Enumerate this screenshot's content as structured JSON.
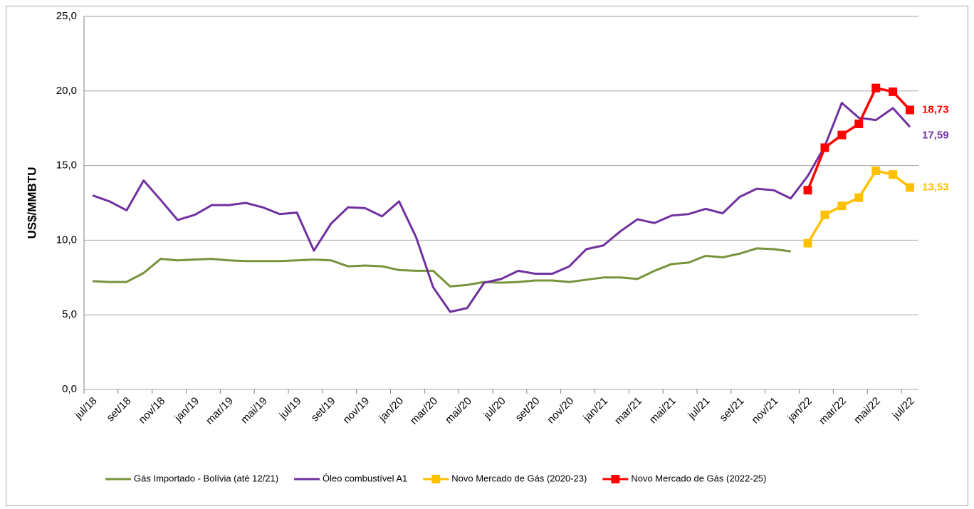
{
  "chart_data": {
    "type": "line",
    "y_label": "US$/MMBTU",
    "categories": [
      "jul/18",
      null,
      "set/18",
      null,
      "nov/18",
      null,
      "jan/19",
      null,
      "mar/19",
      null,
      "mai/19",
      null,
      "jul/19",
      null,
      "set/19",
      null,
      "nov/19",
      null,
      "jan/20",
      null,
      "mar/20",
      null,
      "mai/20",
      null,
      "jul/20",
      null,
      "set/20",
      null,
      "nov/20",
      null,
      "jan/21",
      null,
      "mar/21",
      null,
      "mai/21",
      null,
      "jul/21",
      null,
      "set/21",
      null,
      "nov/21",
      null,
      "jan/22",
      null,
      "mar/22",
      null,
      "mai/22",
      null,
      "jul/22"
    ],
    "ylim": [
      0,
      25
    ],
    "yticks": [
      {
        "value": 0,
        "label": "0,0"
      },
      {
        "value": 5,
        "label": "5,0"
      },
      {
        "value": 10,
        "label": "10,0"
      },
      {
        "value": 15,
        "label": "15,0"
      },
      {
        "value": 20,
        "label": "20,0"
      },
      {
        "value": 25,
        "label": "25,0"
      }
    ],
    "grid": true,
    "legend": "bottom",
    "series": [
      {
        "name": "Gás Importado - Bolívia (até 12/21)",
        "color": "#77933c",
        "marker": false,
        "values": [
          7.25,
          7.2,
          7.2,
          7.8,
          8.75,
          8.65,
          8.7,
          8.75,
          8.65,
          8.6,
          8.6,
          8.6,
          8.65,
          8.7,
          8.65,
          8.25,
          8.3,
          8.25,
          8.0,
          7.95,
          7.95,
          6.9,
          7.0,
          7.2,
          7.15,
          7.2,
          7.3,
          7.3,
          7.2,
          7.35,
          7.5,
          7.5,
          7.4,
          7.95,
          8.4,
          8.5,
          8.95,
          8.85,
          9.1,
          9.45,
          9.4,
          9.25,
          null,
          null,
          null,
          null,
          null,
          null,
          null
        ]
      },
      {
        "name": "Óleo combustível A1",
        "color": "#7030a0",
        "marker": false,
        "values": [
          13.0,
          12.6,
          12.0,
          14.0,
          12.7,
          11.35,
          11.7,
          12.35,
          12.35,
          12.5,
          12.2,
          11.75,
          11.85,
          9.3,
          11.1,
          12.2,
          12.15,
          11.6,
          12.6,
          10.2,
          6.85,
          5.2,
          5.45,
          7.15,
          7.4,
          7.95,
          7.75,
          7.75,
          8.25,
          9.4,
          9.65,
          10.6,
          11.4,
          11.15,
          11.65,
          11.75,
          12.1,
          11.8,
          12.9,
          13.45,
          13.35,
          12.8,
          14.3,
          16.3,
          19.2,
          18.2,
          18.05,
          18.85,
          17.59
        ],
        "value_labels": [
          null,
          null,
          null,
          null,
          null,
          null,
          null,
          null,
          null,
          null,
          null,
          null,
          null,
          null,
          null,
          null,
          null,
          null,
          null,
          null,
          null,
          null,
          null,
          null,
          null,
          null,
          null,
          null,
          null,
          null,
          null,
          null,
          null,
          null,
          null,
          null,
          null,
          null,
          null,
          null,
          null,
          null,
          null,
          null,
          null,
          null,
          null,
          null,
          "17,59"
        ]
      },
      {
        "name": "Novo Mercado de Gás (2020-23)",
        "color": "#ffc000",
        "marker": true,
        "values": [
          null,
          null,
          null,
          null,
          null,
          null,
          null,
          null,
          null,
          null,
          null,
          null,
          null,
          null,
          null,
          null,
          null,
          null,
          null,
          null,
          null,
          null,
          null,
          null,
          null,
          null,
          null,
          null,
          null,
          null,
          null,
          null,
          null,
          null,
          null,
          null,
          null,
          null,
          null,
          null,
          null,
          null,
          9.8,
          11.7,
          12.3,
          12.85,
          14.65,
          14.4,
          13.53
        ],
        "value_labels": [
          null,
          null,
          null,
          null,
          null,
          null,
          null,
          null,
          null,
          null,
          null,
          null,
          null,
          null,
          null,
          null,
          null,
          null,
          null,
          null,
          null,
          null,
          null,
          null,
          null,
          null,
          null,
          null,
          null,
          null,
          null,
          null,
          null,
          null,
          null,
          null,
          null,
          null,
          null,
          null,
          null,
          null,
          null,
          null,
          null,
          null,
          null,
          null,
          "13,53"
        ]
      },
      {
        "name": "Novo Mercado de Gás (2022-25)",
        "color": "#ff0000",
        "marker": true,
        "values": [
          null,
          null,
          null,
          null,
          null,
          null,
          null,
          null,
          null,
          null,
          null,
          null,
          null,
          null,
          null,
          null,
          null,
          null,
          null,
          null,
          null,
          null,
          null,
          null,
          null,
          null,
          null,
          null,
          null,
          null,
          null,
          null,
          null,
          null,
          null,
          null,
          null,
          null,
          null,
          null,
          null,
          null,
          13.35,
          16.2,
          17.05,
          17.8,
          20.2,
          19.95,
          18.73
        ],
        "value_labels": [
          null,
          null,
          null,
          null,
          null,
          null,
          null,
          null,
          null,
          null,
          null,
          null,
          null,
          null,
          null,
          null,
          null,
          null,
          null,
          null,
          null,
          null,
          null,
          null,
          null,
          null,
          null,
          null,
          null,
          null,
          null,
          null,
          null,
          null,
          null,
          null,
          null,
          null,
          null,
          null,
          null,
          null,
          null,
          null,
          null,
          null,
          null,
          null,
          "18,73"
        ]
      }
    ]
  }
}
